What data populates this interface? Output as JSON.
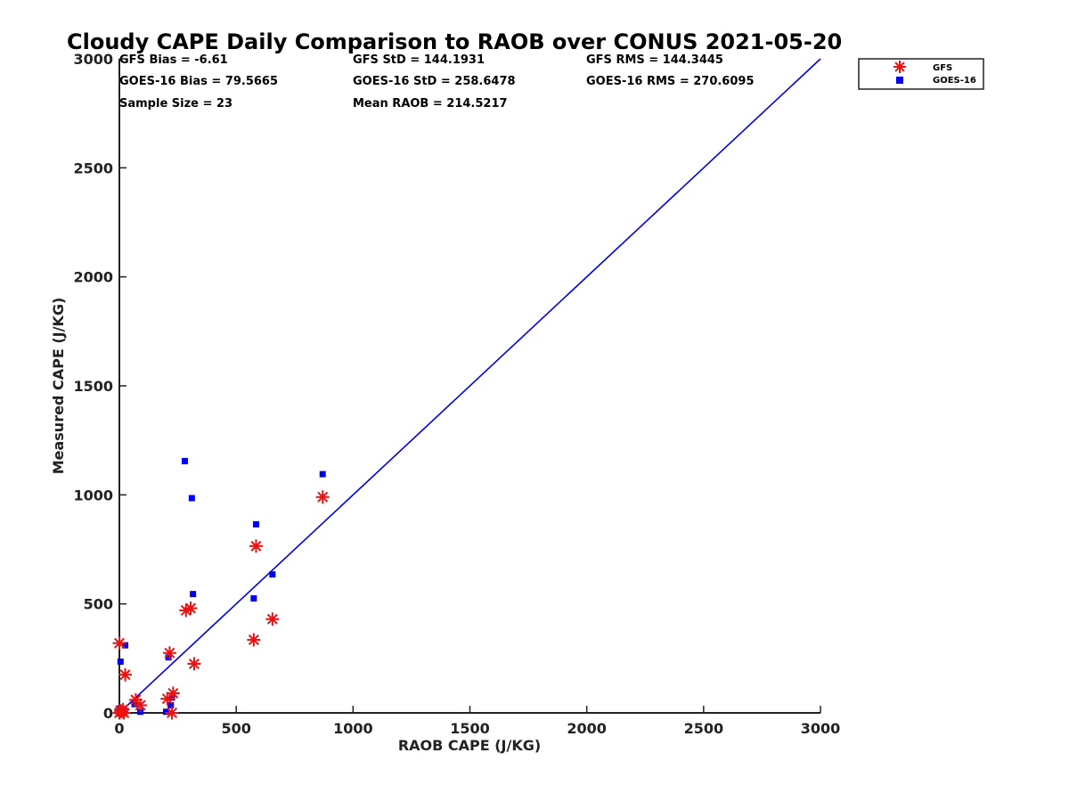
{
  "chart_data": {
    "type": "scatter",
    "title": "Cloudy CAPE Daily Comparison to RAOB over CONUS 2021-05-20",
    "xlabel": "RAOB CAPE (J/KG)",
    "ylabel": "Measured CAPE (J/KG)",
    "xlim": [
      0,
      3000
    ],
    "ylim": [
      0,
      3000
    ],
    "xticks": [
      "0",
      "500",
      "1000",
      "1500",
      "2000",
      "2500",
      "3000"
    ],
    "yticks": [
      "0",
      "500",
      "1000",
      "1500",
      "2000",
      "2500",
      "3000"
    ],
    "grid": false,
    "legend_position": "top-right",
    "stats": [
      "GFS Bias = -6.61",
      "GFS StD = 144.1931",
      "GFS RMS = 144.3445",
      "GOES-16 Bias = 79.5665",
      "GOES-16 StD = 258.6478",
      "GOES-16 RMS = 270.6095",
      "Sample Size = 23",
      "Mean RAOB = 214.5217"
    ],
    "reference_line": {
      "x": [
        0,
        3000
      ],
      "y": [
        0,
        3000
      ],
      "color": "#0000ee"
    },
    "series": [
      {
        "name": "GFS",
        "marker": "asterisk",
        "color": "#ee1111",
        "x": [
          0,
          0,
          5,
          10,
          15,
          20,
          25,
          70,
          90,
          205,
          215,
          225,
          230,
          285,
          305,
          320,
          575,
          585,
          655,
          870
        ],
        "y": [
          0,
          320,
          10,
          5,
          15,
          0,
          175,
          60,
          35,
          65,
          275,
          0,
          90,
          470,
          480,
          225,
          335,
          765,
          430,
          990
        ]
      },
      {
        "name": "GOES-16",
        "marker": "square",
        "color": "#0000ee",
        "x": [
          0,
          5,
          5,
          10,
          20,
          25,
          65,
          90,
          200,
          210,
          220,
          225,
          280,
          310,
          315,
          575,
          585,
          655,
          870
        ],
        "y": [
          20,
          235,
          5,
          15,
          10,
          310,
          40,
          5,
          5,
          255,
          35,
          70,
          1155,
          985,
          545,
          525,
          865,
          635,
          1095
        ]
      }
    ]
  }
}
